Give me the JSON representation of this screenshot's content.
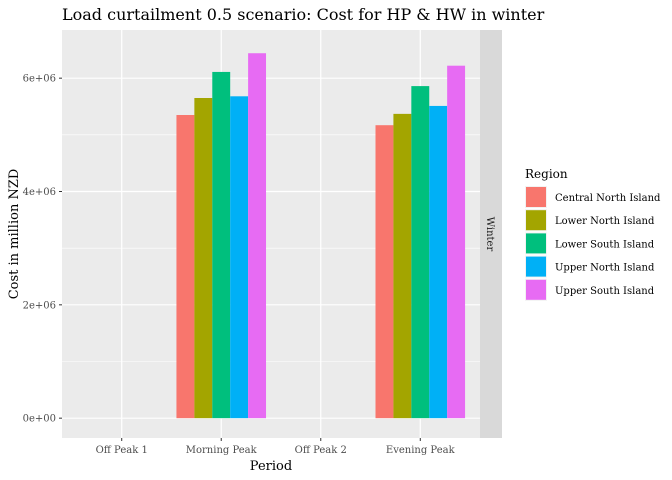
{
  "chart_data": {
    "type": "bar",
    "title": "Load curtailment 0.5 scenario: Cost for HP & HW in winter",
    "xlabel": "Period",
    "ylabel": "Cost in million NZD",
    "facet_label": "Winter",
    "categories": [
      "Off Peak 1",
      "Morning Peak",
      "Off Peak 2",
      "Evening Peak"
    ],
    "ylim": [
      -350000,
      6850000
    ],
    "yticks": [
      0,
      2000000,
      4000000,
      6000000
    ],
    "ytick_labels": [
      "0e+00",
      "2e+06",
      "4e+06",
      "6e+06"
    ],
    "grid": true,
    "legend_title": "Region",
    "legend_position": "right",
    "series": [
      {
        "name": "Central North Island",
        "color": "#F8766D",
        "values": [
          0,
          5350000,
          0,
          5170000
        ]
      },
      {
        "name": "Lower North Island",
        "color": "#A3A500",
        "values": [
          0,
          5650000,
          0,
          5370000
        ]
      },
      {
        "name": "Lower South Island",
        "color": "#00BF7D",
        "values": [
          0,
          6110000,
          0,
          5860000
        ]
      },
      {
        "name": "Upper North Island",
        "color": "#00B0F6",
        "values": [
          0,
          5680000,
          0,
          5510000
        ]
      },
      {
        "name": "Upper South Island",
        "color": "#E76BF3",
        "values": [
          0,
          6440000,
          0,
          6220000
        ]
      }
    ]
  }
}
